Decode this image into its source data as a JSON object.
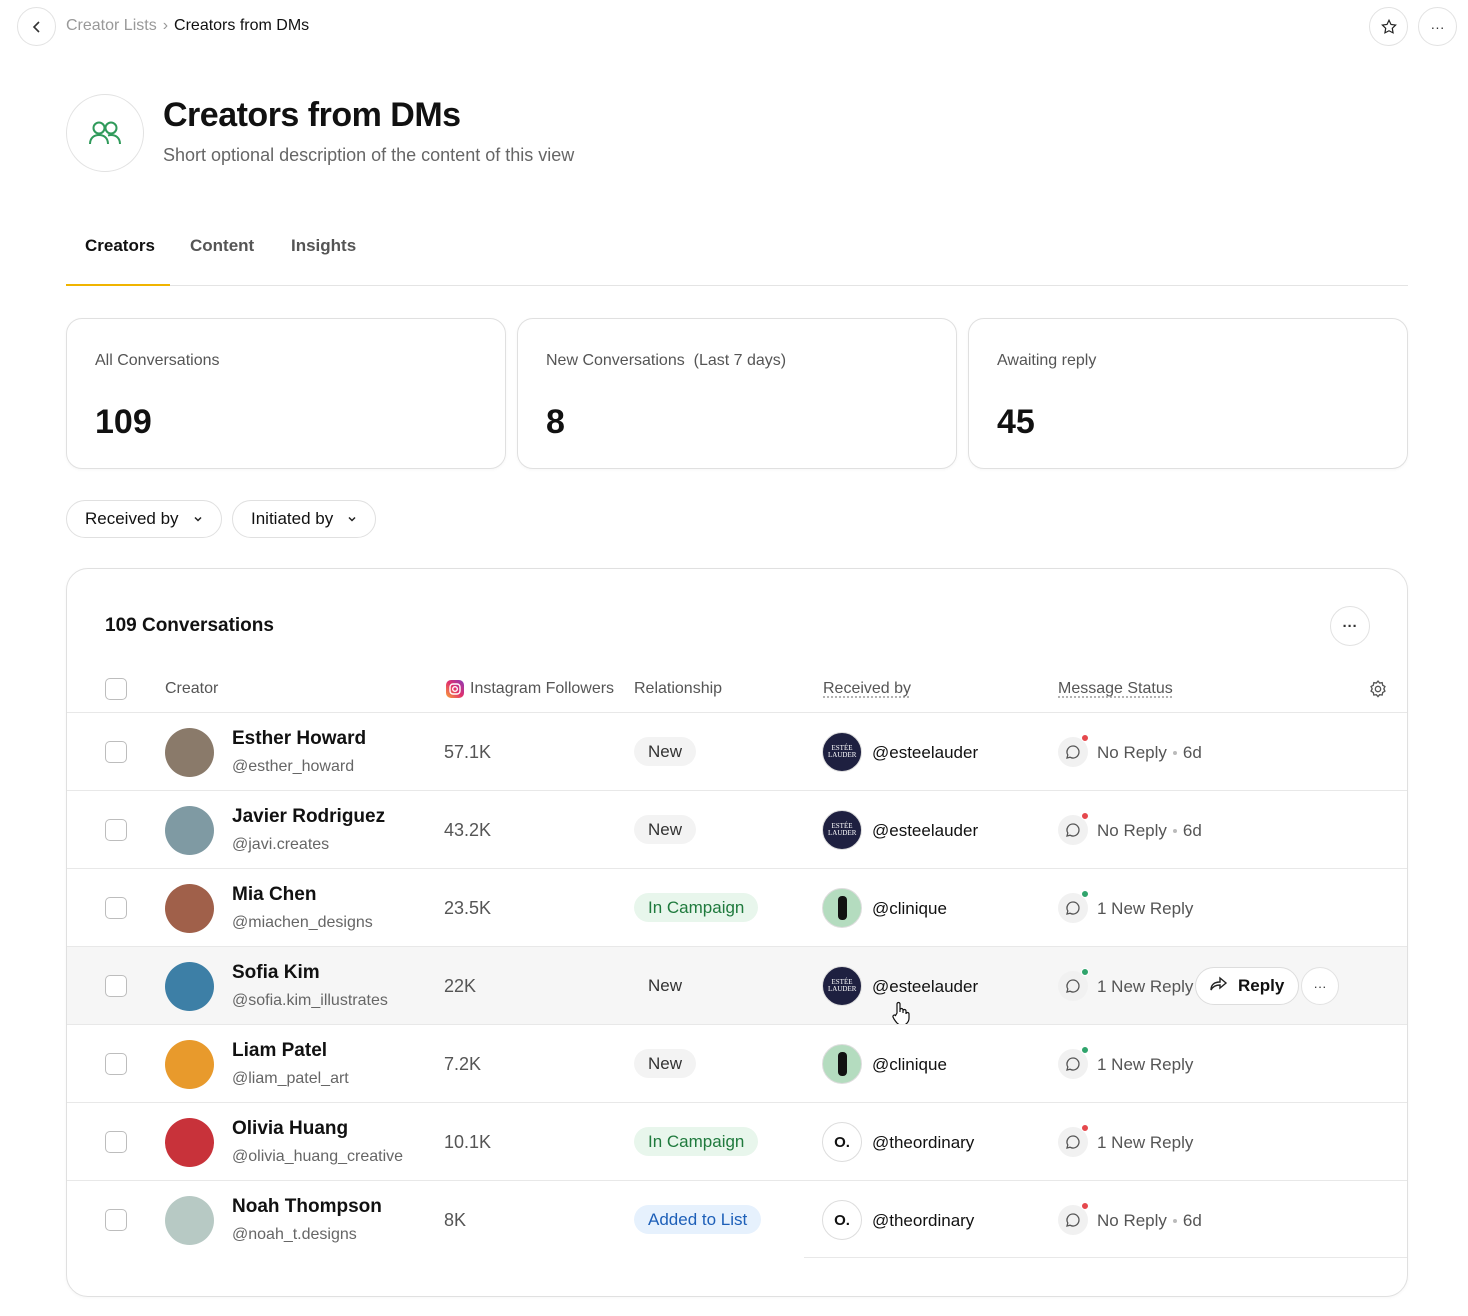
{
  "breadcrumb": {
    "parent": "Creator Lists",
    "separator": "›",
    "current": "Creators from DMs"
  },
  "header": {
    "title": "Creators from DMs",
    "description": "Short optional description of the content of this view"
  },
  "tabs": {
    "items": [
      "Creators",
      "Content",
      "Insights"
    ],
    "active": 0
  },
  "stats": [
    {
      "label": "All Conversations",
      "value": 109
    },
    {
      "label": "New Conversations  (Last 7 days)",
      "value": 8
    },
    {
      "label": "Awaiting reply",
      "value": 45
    }
  ],
  "filters": [
    "Received by",
    "Initiated by"
  ],
  "table": {
    "title": "109 Conversations",
    "columns": [
      "Creator",
      "Instagram Followers",
      "Relationship",
      "Received by",
      "Message Status"
    ],
    "row_action": "Reply",
    "highlighted_row": 3,
    "rows": [
      {
        "name": "Esther Howard",
        "handle": "@esther_howard",
        "followers": "57.1K",
        "relationship": "New",
        "tag_color": "#f3f3f3",
        "tag_text_color": "#333333",
        "received_by": "@esteelauder",
        "brand_logo": "ESTÉE LAUDER",
        "brand_color": "#1e2040",
        "status": "No Reply",
        "age": "6d",
        "dot_color": "#e5484d",
        "avatar_color": "#8a7a6a"
      },
      {
        "name": "Javier Rodriguez",
        "handle": "@javi.creates",
        "followers": "43.2K",
        "relationship": "New",
        "tag_color": "#f3f3f3",
        "tag_text_color": "#333333",
        "received_by": "@esteelauder",
        "brand_logo": "ESTÉE LAUDER",
        "brand_color": "#1e2040",
        "status": "No Reply",
        "age": "6d",
        "dot_color": "#e5484d",
        "avatar_color": "#7f9aa3"
      },
      {
        "name": "Mia Chen",
        "handle": "@miachen_designs",
        "followers": "23.5K",
        "relationship": "In Campaign",
        "tag_color": "#e8f6ec",
        "tag_text_color": "#1f7a3d",
        "received_by": "@clinique",
        "brand_color": "#b4dcbf",
        "status": "1 New Reply",
        "dot_color": "#30a46c",
        "avatar_color": "#a0604a"
      },
      {
        "name": "Sofia Kim",
        "handle": "@sofia.kim_illustrates",
        "followers": "22K",
        "relationship": "New",
        "tag_color": "#f3f3f3",
        "tag_text_color": "#333333",
        "received_by": "@esteelauder",
        "brand_logo": "ESTÉE LAUDER",
        "brand_color": "#1e2040",
        "status": "1 New Reply",
        "dot_color": "#30a46c",
        "avatar_color": "#3d7fa6"
      },
      {
        "name": "Liam Patel",
        "handle": "@liam_patel_art",
        "followers": "7.2K",
        "relationship": "New",
        "tag_color": "#f3f3f3",
        "tag_text_color": "#333333",
        "received_by": "@clinique",
        "brand_color": "#b4dcbf",
        "status": "1 New Reply",
        "dot_color": "#30a46c",
        "avatar_color": "#e89a2c"
      },
      {
        "name": "Olivia Huang",
        "handle": "@olivia_huang_creative",
        "followers": "10.1K",
        "relationship": "In Campaign",
        "tag_color": "#e8f6ec",
        "tag_text_color": "#1f7a3d",
        "received_by": "@theordinary",
        "brand_logo": "O.",
        "brand_color": "#ffffff",
        "status": "1 New Reply",
        "dot_color": "#e5484d",
        "avatar_color": "#c8323a"
      },
      {
        "name": "Noah Thompson",
        "handle": "@noah_t.designs",
        "followers": "8K",
        "relationship": "Added to List",
        "tag_color": "#e6f1fd",
        "tag_text_color": "#1d5fb8",
        "received_by": "@theordinary",
        "brand_logo": "O.",
        "brand_color": "#ffffff",
        "status": "No Reply",
        "age": "6d",
        "dot_color": "#e5484d",
        "avatar_color": "#b7c9c4"
      }
    ]
  }
}
